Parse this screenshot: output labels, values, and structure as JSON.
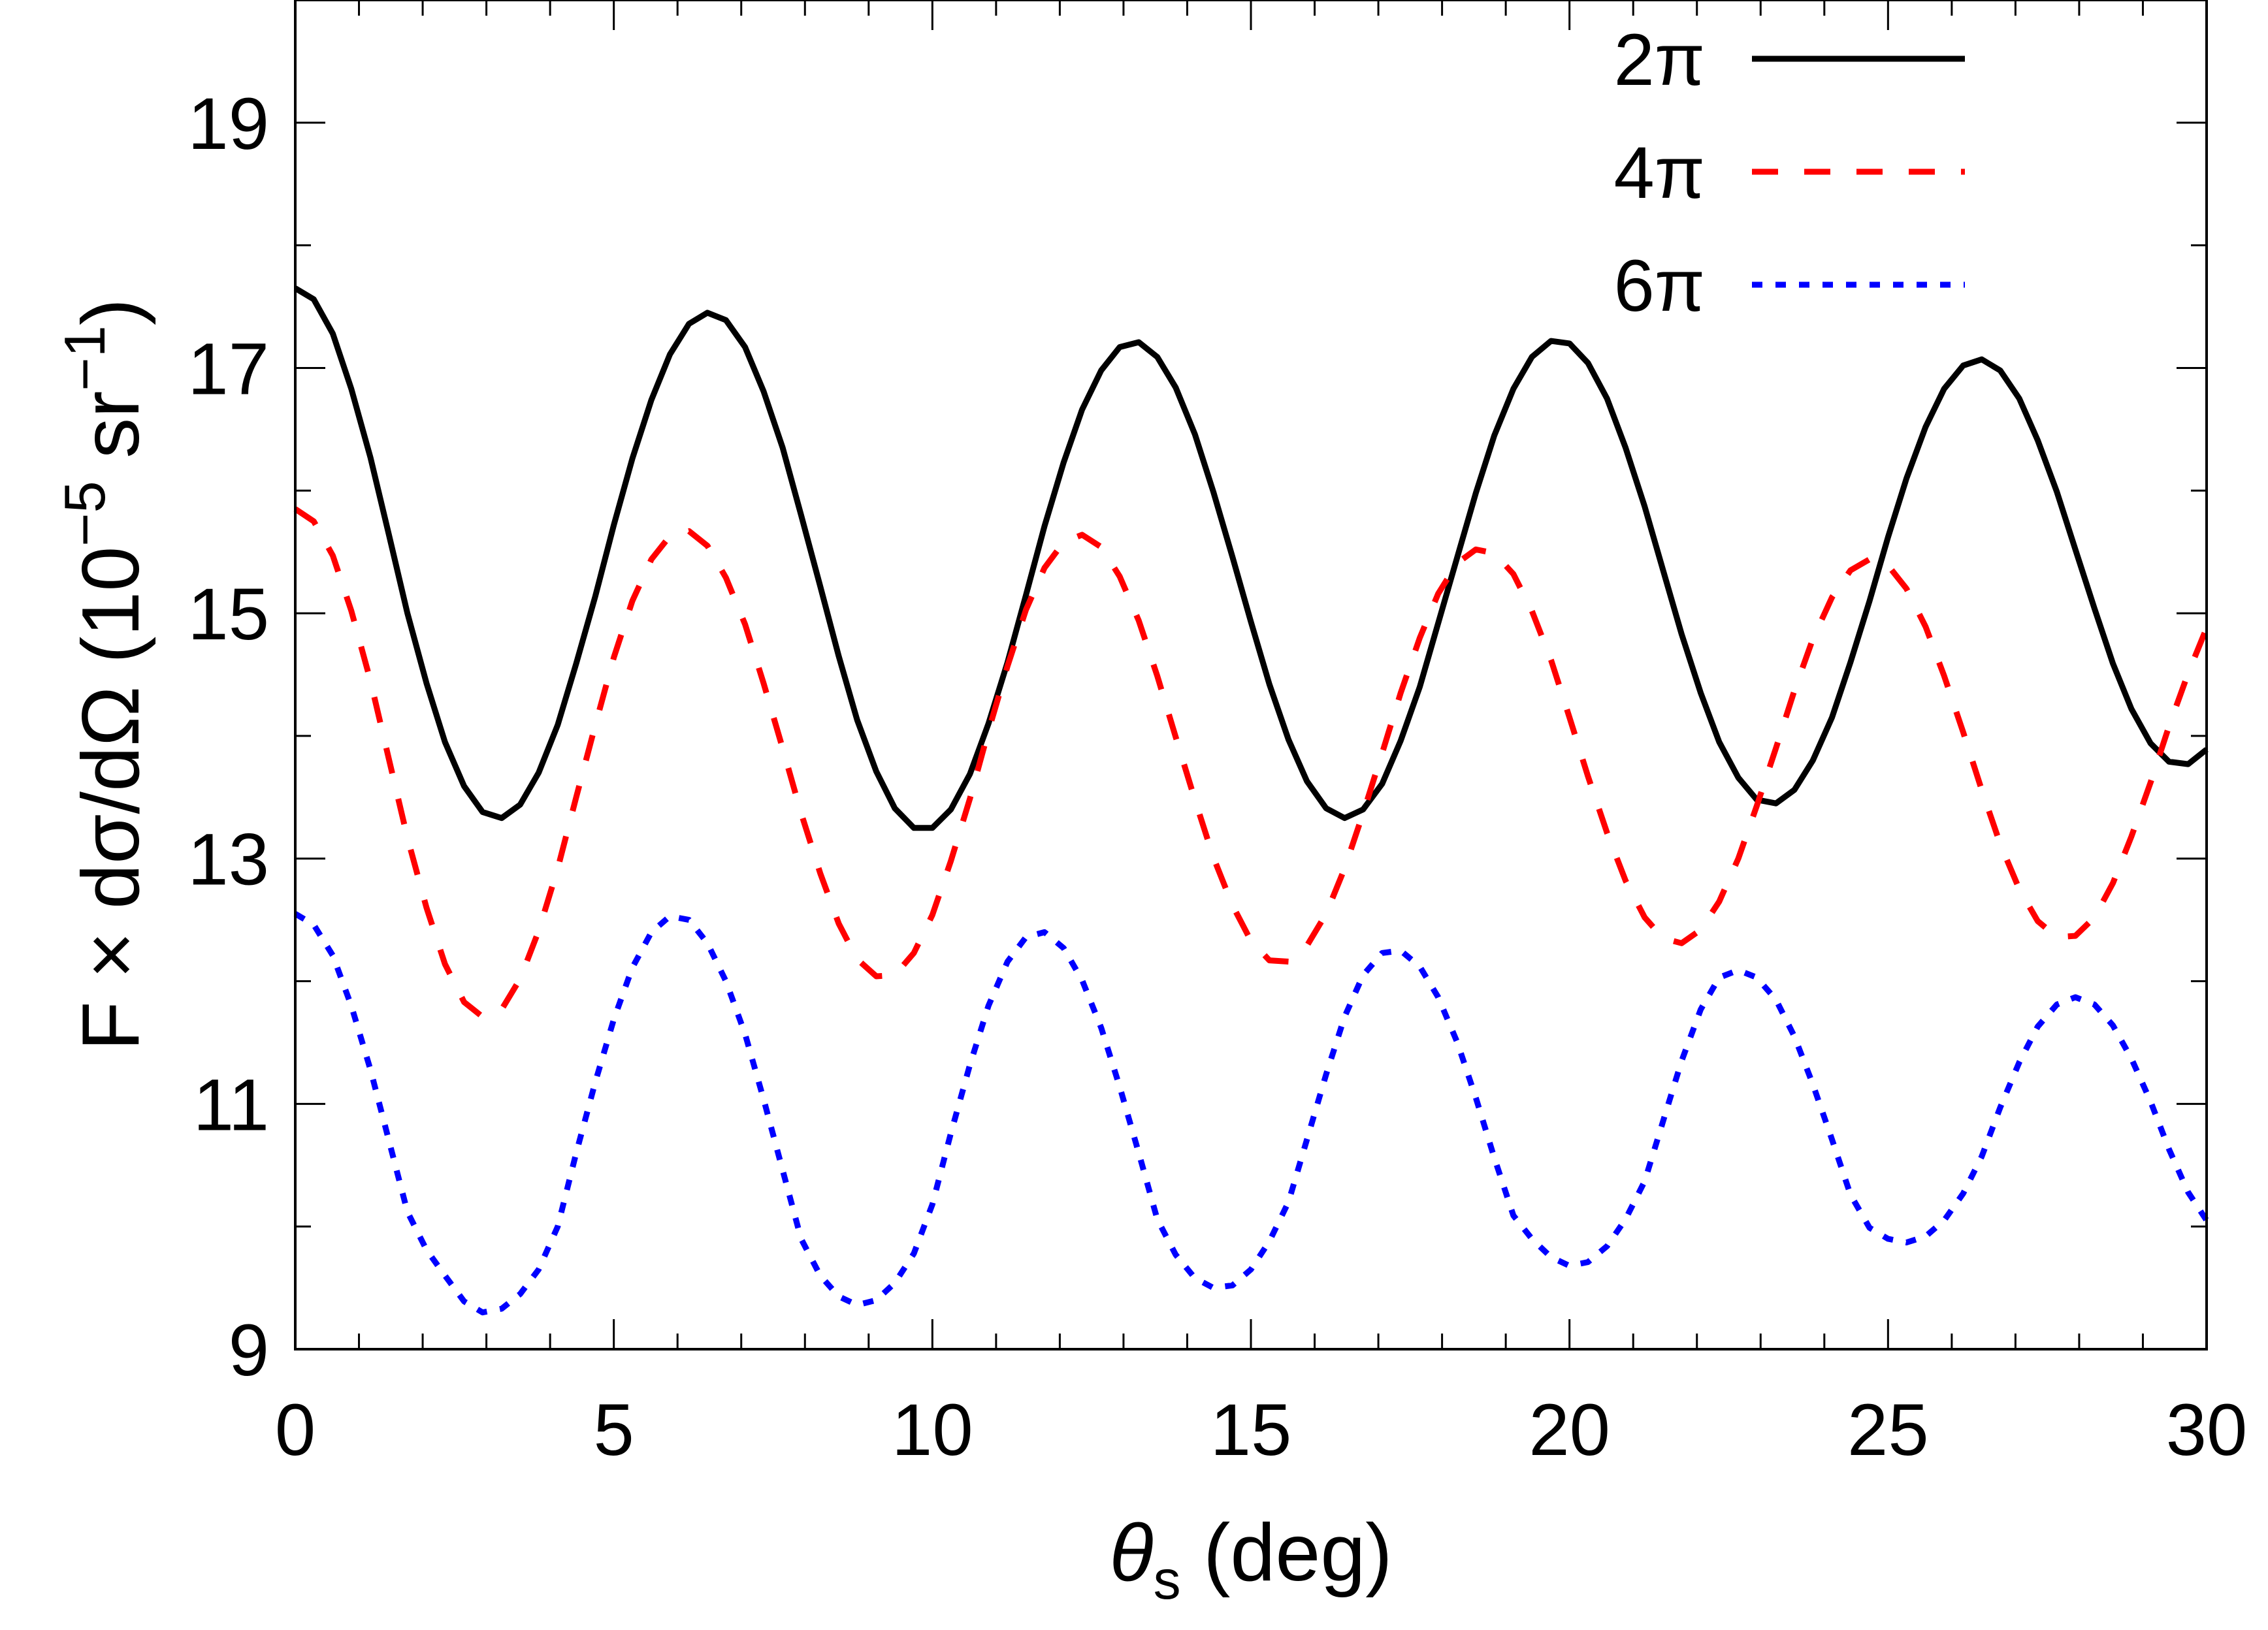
{
  "chart_data": {
    "type": "line",
    "xlim": [
      0,
      30
    ],
    "ylim": [
      9,
      20
    ],
    "xticks": [
      0,
      5,
      10,
      15,
      20,
      25,
      30
    ],
    "yticks": [
      9,
      11,
      13,
      15,
      17,
      19
    ],
    "x_minor_step": 1,
    "y_minor_step": 1,
    "xlabel": {
      "symbol": "θ",
      "sub": "s",
      "rest": " (deg)"
    },
    "ylabel": {
      "pre": "F × dσ/dΩ (10",
      "sup1": "−5",
      "mid": " sr",
      "sup2": "−1",
      "post": ")"
    },
    "legend_position": "top-right",
    "series": [
      {
        "name": "2π",
        "color": "#000000",
        "dash": "solid",
        "x": [
          0.0,
          0.29,
          0.59,
          0.88,
          1.18,
          1.47,
          1.76,
          2.06,
          2.35,
          2.65,
          2.94,
          3.24,
          3.53,
          3.82,
          4.12,
          4.41,
          4.71,
          5.0,
          5.29,
          5.59,
          5.88,
          6.18,
          6.47,
          6.76,
          7.06,
          7.35,
          7.65,
          7.94,
          8.24,
          8.53,
          8.82,
          9.12,
          9.41,
          9.71,
          10.0,
          10.29,
          10.59,
          10.88,
          11.18,
          11.47,
          11.76,
          12.06,
          12.35,
          12.65,
          12.94,
          13.24,
          13.53,
          13.82,
          14.12,
          14.41,
          14.71,
          15.0,
          15.29,
          15.59,
          15.88,
          16.18,
          16.47,
          16.76,
          17.06,
          17.35,
          17.65,
          17.94,
          18.24,
          18.53,
          18.82,
          19.12,
          19.41,
          19.71,
          20.0,
          20.29,
          20.59,
          20.88,
          21.18,
          21.47,
          21.76,
          22.06,
          22.35,
          22.65,
          22.94,
          23.24,
          23.53,
          23.82,
          24.12,
          24.41,
          24.71,
          25.0,
          25.29,
          25.59,
          25.88,
          26.18,
          26.47,
          26.76,
          27.06,
          27.35,
          27.65,
          27.94,
          28.24,
          28.53,
          28.82,
          29.12,
          29.41,
          29.71,
          30.0
        ],
        "y": [
          17.65,
          17.56,
          17.28,
          16.83,
          16.27,
          15.64,
          15.0,
          14.43,
          13.95,
          13.59,
          13.38,
          13.33,
          13.44,
          13.7,
          14.09,
          14.59,
          15.14,
          15.72,
          16.26,
          16.74,
          17.11,
          17.36,
          17.45,
          17.39,
          17.17,
          16.81,
          16.35,
          15.8,
          15.22,
          14.65,
          14.13,
          13.71,
          13.41,
          13.25,
          13.25,
          13.4,
          13.69,
          14.1,
          14.6,
          15.15,
          15.71,
          16.23,
          16.66,
          16.98,
          17.17,
          17.21,
          17.09,
          16.84,
          16.46,
          15.99,
          15.46,
          14.93,
          14.42,
          13.97,
          13.63,
          13.41,
          13.33,
          13.4,
          13.61,
          13.96,
          14.4,
          14.92,
          15.46,
          15.98,
          16.45,
          16.83,
          17.09,
          17.22,
          17.2,
          17.04,
          16.75,
          16.35,
          15.87,
          15.35,
          14.83,
          14.35,
          13.95,
          13.66,
          13.48,
          13.45,
          13.56,
          13.8,
          14.15,
          14.6,
          15.1,
          15.62,
          16.1,
          16.52,
          16.83,
          17.02,
          17.07,
          16.98,
          16.75,
          16.41,
          15.99,
          15.52,
          15.04,
          14.59,
          14.22,
          13.94,
          13.79,
          13.77,
          13.89
        ]
      },
      {
        "name": "4π",
        "color": "#ff0000",
        "dash": "dashed",
        "x": [
          0.0,
          0.29,
          0.59,
          0.88,
          1.18,
          1.47,
          1.76,
          2.06,
          2.35,
          2.65,
          2.94,
          3.24,
          3.53,
          3.82,
          4.12,
          4.41,
          4.71,
          5.0,
          5.29,
          5.59,
          5.88,
          6.18,
          6.47,
          6.76,
          7.06,
          7.35,
          7.65,
          7.94,
          8.24,
          8.53,
          8.82,
          9.12,
          9.41,
          9.71,
          10.0,
          10.29,
          10.59,
          10.88,
          11.18,
          11.47,
          11.76,
          12.06,
          12.35,
          12.65,
          12.94,
          13.24,
          13.53,
          13.82,
          14.12,
          14.41,
          14.71,
          15.0,
          15.29,
          15.59,
          15.88,
          16.18,
          16.47,
          16.76,
          17.06,
          17.35,
          17.65,
          17.94,
          18.24,
          18.53,
          18.82,
          19.12,
          19.41,
          19.71,
          20.0,
          20.29,
          20.59,
          20.88,
          21.18,
          21.47,
          21.76,
          22.06,
          22.35,
          22.65,
          22.94,
          23.24,
          23.53,
          23.82,
          24.12,
          24.41,
          24.71,
          25.0,
          25.29,
          25.59,
          25.88,
          26.18,
          26.47,
          26.76,
          27.06,
          27.35,
          27.65,
          27.94,
          28.24,
          28.53,
          28.82,
          29.12,
          29.41,
          29.71,
          30.0
        ],
        "y": [
          15.85,
          15.75,
          15.47,
          15.02,
          14.45,
          13.81,
          13.17,
          12.6,
          12.14,
          11.83,
          11.71,
          11.77,
          12.02,
          12.41,
          12.92,
          13.5,
          14.09,
          14.64,
          15.1,
          15.44,
          15.63,
          15.67,
          15.55,
          15.29,
          14.91,
          14.43,
          13.9,
          13.37,
          12.88,
          12.47,
          12.18,
          12.04,
          12.05,
          12.23,
          12.54,
          12.98,
          13.49,
          14.04,
          14.57,
          15.03,
          15.37,
          15.58,
          15.64,
          15.54,
          15.3,
          14.94,
          14.49,
          13.99,
          13.48,
          13.01,
          12.62,
          12.33,
          12.17,
          12.16,
          12.29,
          12.55,
          12.92,
          13.37,
          13.86,
          14.35,
          14.8,
          15.16,
          15.41,
          15.52,
          15.49,
          15.32,
          15.02,
          14.62,
          14.15,
          13.67,
          13.21,
          12.82,
          12.52,
          12.35,
          12.31,
          12.42,
          12.65,
          13.0,
          13.43,
          13.9,
          14.37,
          14.79,
          15.13,
          15.35,
          15.44,
          15.39,
          15.2,
          14.89,
          14.49,
          14.03,
          13.56,
          13.12,
          12.75,
          12.49,
          12.36,
          12.37,
          12.52,
          12.8,
          13.18,
          13.62,
          14.08,
          14.51,
          14.88
        ]
      },
      {
        "name": "6π",
        "color": "#0000ff",
        "dash": "dotted",
        "x": [
          0.0,
          0.29,
          0.59,
          0.88,
          1.18,
          1.47,
          1.76,
          2.06,
          2.35,
          2.65,
          2.94,
          3.24,
          3.53,
          3.82,
          4.12,
          4.41,
          4.71,
          5.0,
          5.29,
          5.59,
          5.88,
          6.18,
          6.47,
          6.76,
          7.06,
          7.35,
          7.65,
          7.94,
          8.24,
          8.53,
          8.82,
          9.12,
          9.41,
          9.71,
          10.0,
          10.29,
          10.59,
          10.88,
          11.18,
          11.47,
          11.76,
          12.06,
          12.35,
          12.65,
          12.94,
          13.24,
          13.53,
          13.82,
          14.12,
          14.41,
          14.71,
          15.0,
          15.29,
          15.59,
          15.88,
          16.18,
          16.47,
          16.76,
          17.06,
          17.35,
          17.65,
          17.94,
          18.24,
          18.53,
          18.82,
          19.12,
          19.41,
          19.71,
          20.0,
          20.29,
          20.59,
          20.88,
          21.18,
          21.47,
          21.76,
          22.06,
          22.35,
          22.65,
          22.94,
          23.24,
          23.53,
          23.82,
          24.12,
          24.41,
          24.71,
          25.0,
          25.29,
          25.59,
          25.88,
          26.18,
          26.47,
          26.76,
          27.06,
          27.35,
          27.65,
          27.94,
          28.24,
          28.53,
          28.82,
          29.12,
          29.41,
          29.71,
          30.0
        ],
        "y": [
          12.55,
          12.46,
          12.21,
          11.8,
          11.28,
          10.7,
          10.12,
          9.81,
          9.6,
          9.39,
          9.3,
          9.33,
          9.45,
          9.65,
          10.0,
          10.6,
          11.18,
          11.69,
          12.11,
          12.4,
          12.53,
          12.5,
          12.31,
          12.0,
          11.57,
          11.04,
          10.46,
          9.9,
          9.6,
          9.43,
          9.36,
          9.4,
          9.54,
          9.78,
          10.18,
          10.76,
          11.32,
          11.8,
          12.16,
          12.36,
          12.4,
          12.27,
          12.01,
          11.62,
          11.14,
          10.6,
          10.06,
          9.77,
          9.58,
          9.5,
          9.52,
          9.65,
          9.88,
          10.2,
          10.71,
          11.24,
          11.71,
          12.05,
          12.23,
          12.25,
          12.12,
          11.87,
          11.5,
          11.05,
          10.56,
          10.09,
          9.9,
          9.75,
          9.68,
          9.71,
          9.84,
          10.06,
          10.37,
          10.86,
          11.35,
          11.77,
          12.03,
          12.09,
          12.03,
          11.85,
          11.55,
          11.16,
          10.71,
          10.26,
          9.99,
          9.9,
          9.87,
          9.92,
          10.05,
          10.27,
          10.57,
          10.97,
          11.34,
          11.63,
          11.81,
          11.87,
          11.81,
          11.64,
          11.37,
          11.02,
          10.63,
          10.28,
          10.05
        ]
      }
    ]
  }
}
